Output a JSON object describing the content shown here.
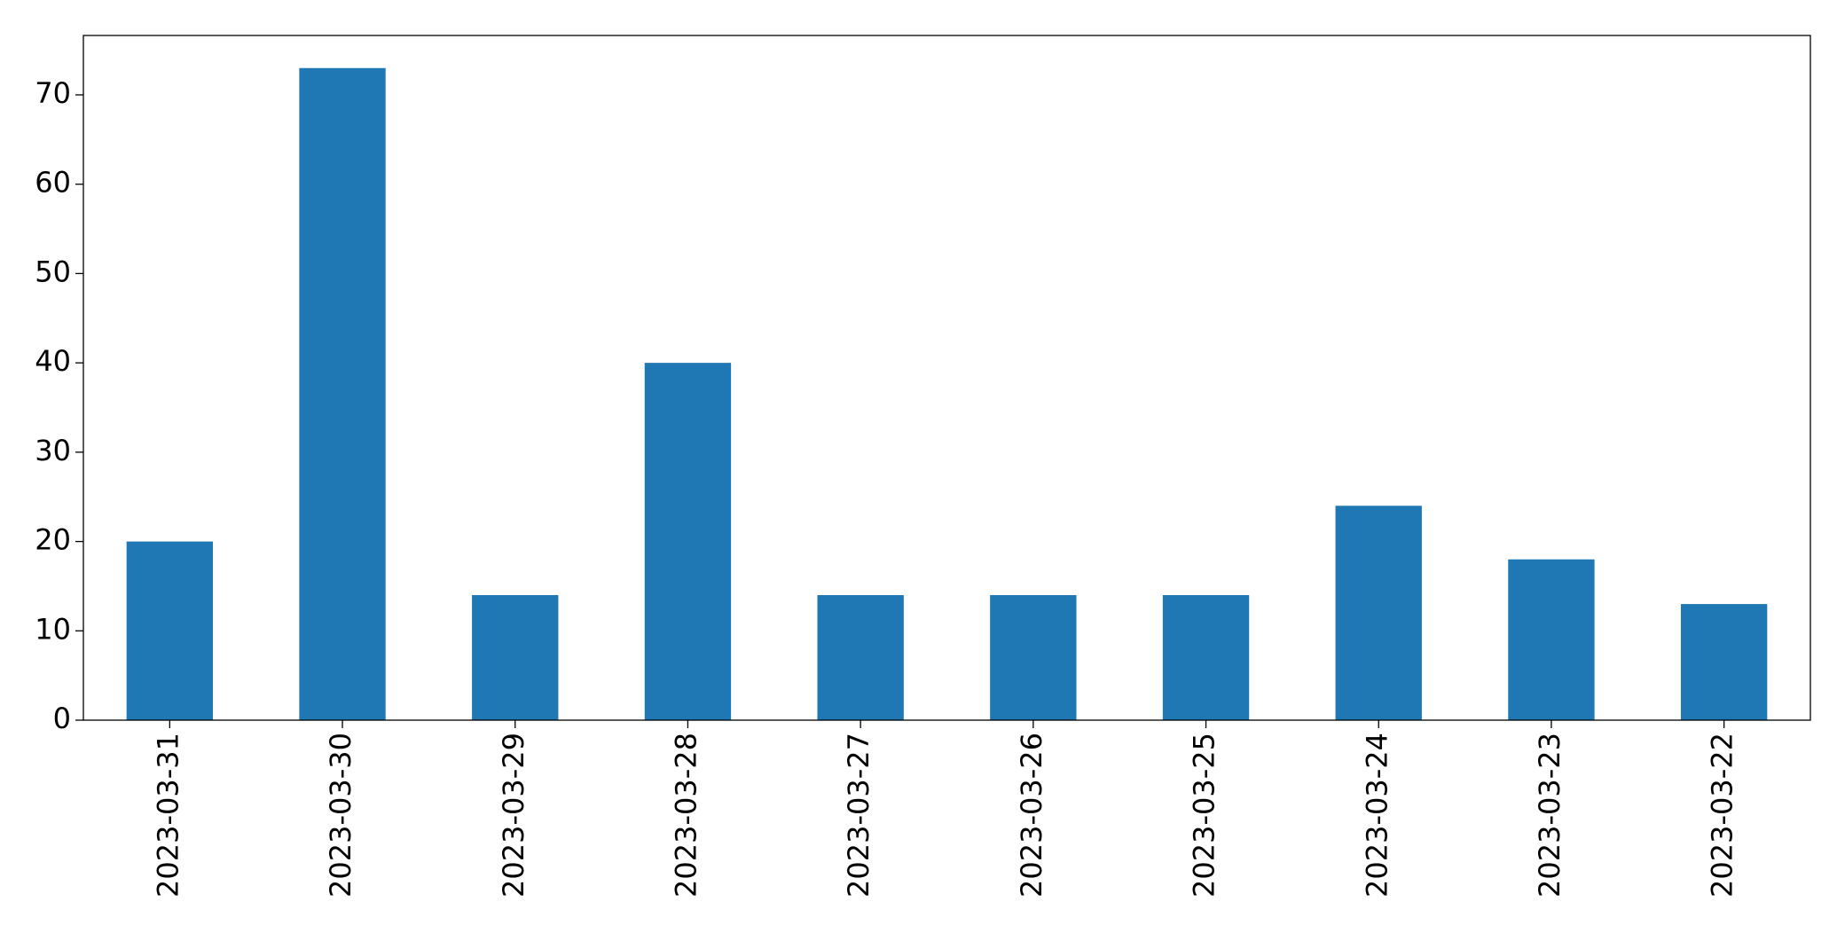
{
  "chart_data": {
    "type": "bar",
    "categories": [
      "2023-03-31",
      "2023-03-30",
      "2023-03-29",
      "2023-03-28",
      "2023-03-27",
      "2023-03-26",
      "2023-03-25",
      "2023-03-24",
      "2023-03-23",
      "2023-03-22"
    ],
    "values": [
      20,
      73,
      14,
      40,
      14,
      14,
      14,
      24,
      18,
      13
    ],
    "color": "#1f77b4",
    "ylim": [
      0,
      76.65
    ],
    "yticks": [
      0,
      10,
      20,
      30,
      40,
      50,
      60,
      70
    ],
    "grid": false
  }
}
